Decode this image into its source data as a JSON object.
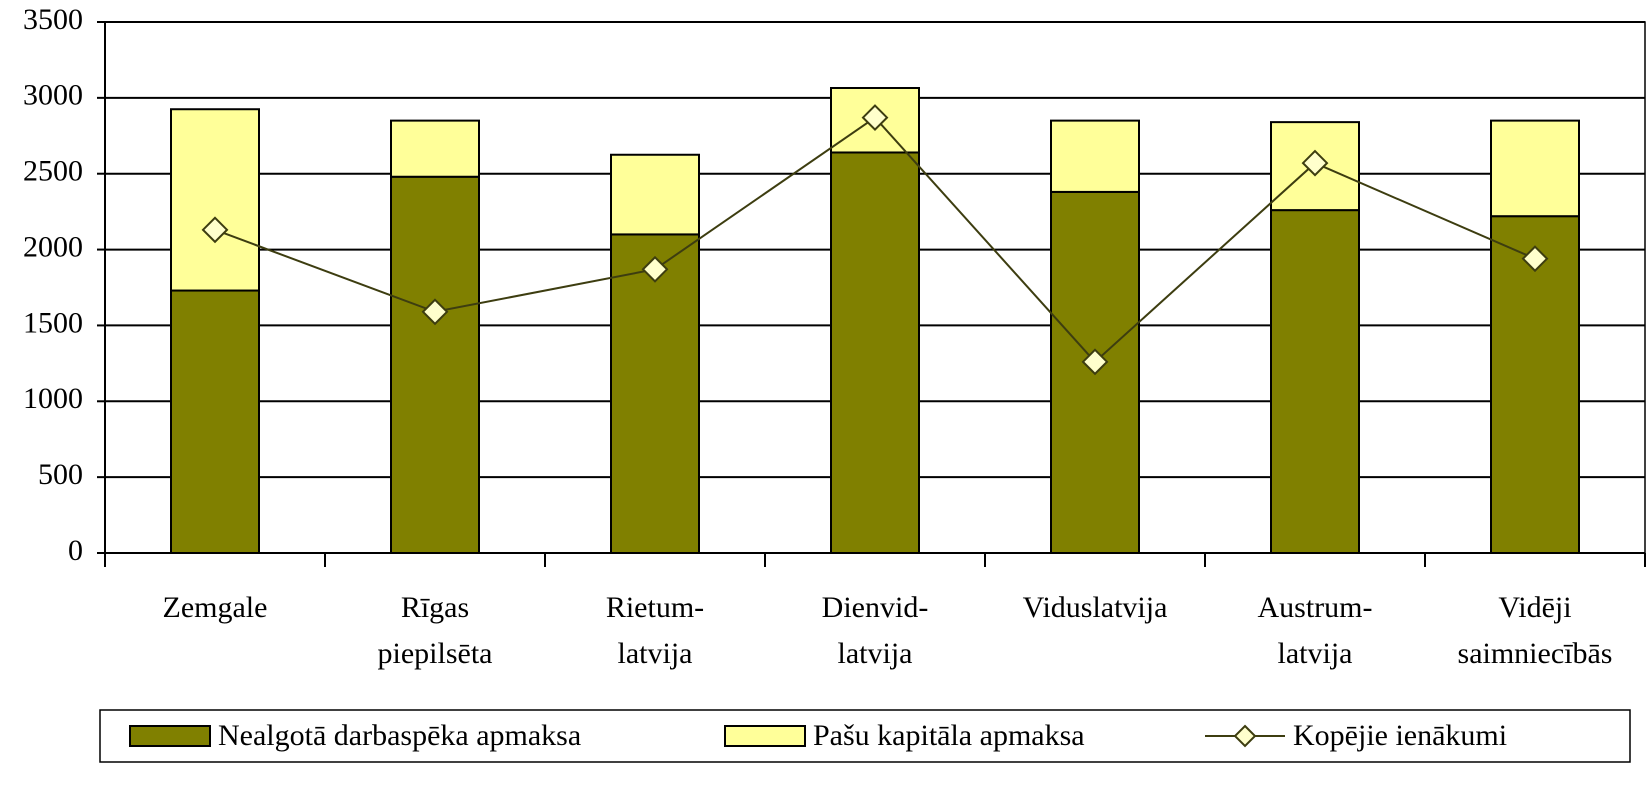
{
  "chart_data": {
    "type": "bar",
    "categories": [
      "Zemgale",
      "Rīgas\npiepilsēta",
      "Rietum-\nlatvija",
      "Dienvid-\nlatvija",
      "Viduslatvija",
      "Austrum-\nlatvija",
      "Vidēji\nsaimniecībās"
    ],
    "series": [
      {
        "name": "Nealgotā darbaspēka apmaksa",
        "color": "#808000",
        "type": "bar",
        "values": [
          1730,
          2480,
          2100,
          2640,
          2380,
          2260,
          2220
        ]
      },
      {
        "name": "Pašu kapitāla apmaksa",
        "color": "#ffff99",
        "type": "bar",
        "values": [
          1195,
          370,
          525,
          425,
          470,
          580,
          630
        ]
      },
      {
        "name": "Kopējie ienākumi",
        "color": "#3d3d10",
        "type": "line",
        "values": [
          2130,
          1590,
          1870,
          2870,
          1260,
          2570,
          1940
        ]
      }
    ],
    "stacked": true,
    "ylim": [
      0,
      3500
    ],
    "yticks": [
      0,
      500,
      1000,
      1500,
      2000,
      2500,
      3000,
      3500
    ],
    "grid": true,
    "legend": "bottom"
  }
}
